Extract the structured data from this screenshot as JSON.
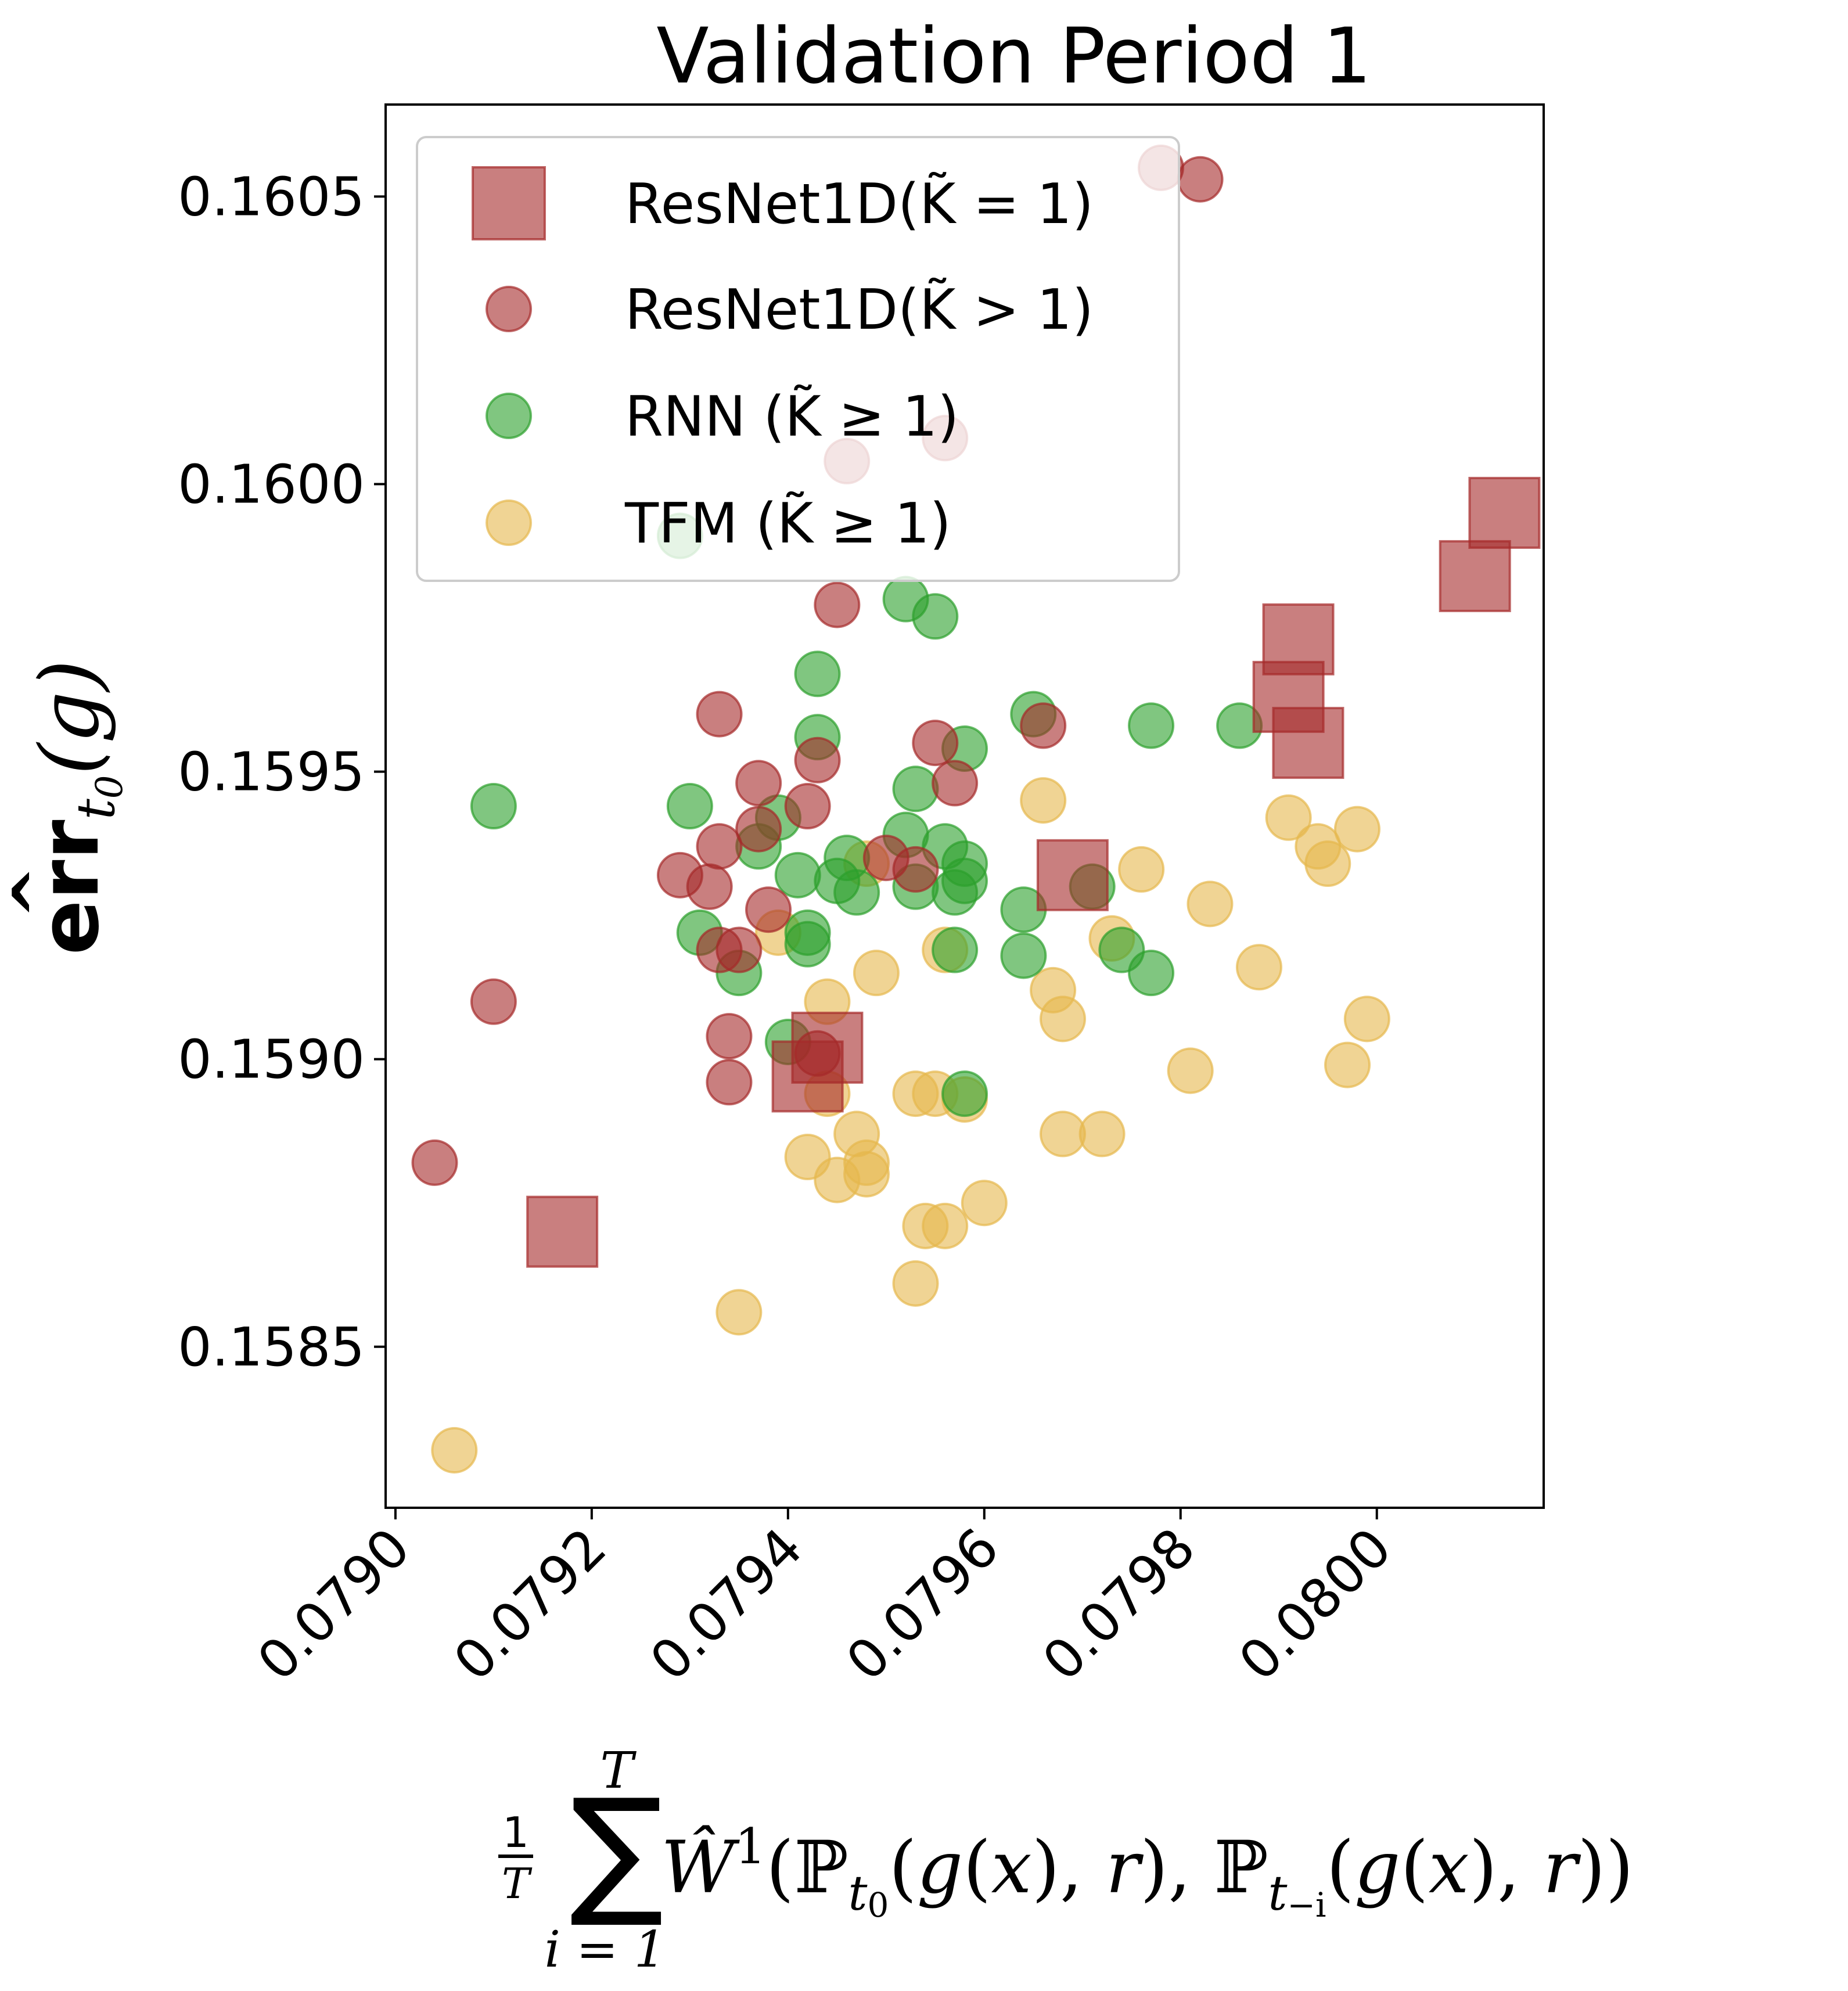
{
  "chart_data": {
    "type": "scatter",
    "title": "Validation Period 1",
    "xlabel": "1/T Σ_{i=1}^{T} Ŵ¹(ℙ_{t0}(g(x), r), ℙ_{t−i}(g(x), r))",
    "ylabel": "êrr_{t0}(g)",
    "xlim": [
      0.07899,
      0.08017
    ],
    "ylim": [
      0.15822,
      0.16066
    ],
    "xticks": [
      "0.0790",
      "0.0792",
      "0.0794",
      "0.0796",
      "0.0798",
      "0.0800"
    ],
    "xtick_values": [
      0.079,
      0.0792,
      0.0794,
      0.0796,
      0.0798,
      0.08
    ],
    "yticks": [
      "0.1585",
      "0.1590",
      "0.1595",
      "0.1600",
      "0.1605"
    ],
    "ytick_values": [
      0.1585,
      0.159,
      0.1595,
      0.16,
      0.1605
    ],
    "series": [
      {
        "name": "ResNet1D(K̃ = 1)",
        "marker": "square",
        "color": "#a52a2a",
        "points": [
          [
            0.07917,
            0.1587
          ],
          [
            0.07942,
            0.15897
          ],
          [
            0.07944,
            0.15902
          ],
          [
            0.07969,
            0.15932
          ],
          [
            0.07991,
            0.15963
          ],
          [
            0.07992,
            0.15973
          ],
          [
            0.07993,
            0.15955
          ],
          [
            0.0801,
            0.15984
          ],
          [
            0.08013,
            0.15995
          ]
        ]
      },
      {
        "name": "ResNet1D(K̃ > 1)",
        "marker": "circle",
        "color": "#a52a2a",
        "points": [
          [
            0.07904,
            0.15882
          ],
          [
            0.0791,
            0.1591
          ],
          [
            0.07929,
            0.15932
          ],
          [
            0.07932,
            0.1593
          ],
          [
            0.07933,
            0.15919
          ],
          [
            0.07933,
            0.15937
          ],
          [
            0.07933,
            0.1596
          ],
          [
            0.07934,
            0.15904
          ],
          [
            0.07934,
            0.15896
          ],
          [
            0.07935,
            0.15919
          ],
          [
            0.07937,
            0.15948
          ],
          [
            0.07937,
            0.1594
          ],
          [
            0.07938,
            0.15926
          ],
          [
            0.07942,
            0.15944
          ],
          [
            0.07943,
            0.15901
          ],
          [
            0.07943,
            0.15952
          ],
          [
            0.07945,
            0.15979
          ],
          [
            0.07946,
            0.16004
          ],
          [
            0.0795,
            0.15935
          ],
          [
            0.07953,
            0.15933
          ],
          [
            0.07955,
            0.15955
          ],
          [
            0.07956,
            0.16008
          ],
          [
            0.07957,
            0.15948
          ],
          [
            0.07966,
            0.15958
          ],
          [
            0.07978,
            0.16055
          ],
          [
            0.07982,
            0.16053
          ]
        ]
      },
      {
        "name": "RNN (K̃ ≥ 1)",
        "marker": "circle",
        "color": "#2ca02c",
        "points": [
          [
            0.0791,
            0.15944
          ],
          [
            0.07929,
            0.15991
          ],
          [
            0.0793,
            0.15944
          ],
          [
            0.07931,
            0.15922
          ],
          [
            0.07935,
            0.15915
          ],
          [
            0.07937,
            0.15937
          ],
          [
            0.07939,
            0.15942
          ],
          [
            0.0794,
            0.15903
          ],
          [
            0.07941,
            0.15932
          ],
          [
            0.07942,
            0.1592
          ],
          [
            0.07942,
            0.15922
          ],
          [
            0.07943,
            0.15956
          ],
          [
            0.07943,
            0.15967
          ],
          [
            0.07945,
            0.15931
          ],
          [
            0.07946,
            0.15935
          ],
          [
            0.07947,
            0.15929
          ],
          [
            0.07952,
            0.15939
          ],
          [
            0.07952,
            0.1598
          ],
          [
            0.07953,
            0.15947
          ],
          [
            0.07953,
            0.1593
          ],
          [
            0.07955,
            0.15977
          ],
          [
            0.07956,
            0.15937
          ],
          [
            0.07957,
            0.15929
          ],
          [
            0.07957,
            0.15919
          ],
          [
            0.07958,
            0.15954
          ],
          [
            0.07958,
            0.15931
          ],
          [
            0.07958,
            0.15934
          ],
          [
            0.07958,
            0.15894
          ],
          [
            0.07964,
            0.15926
          ],
          [
            0.07964,
            0.15918
          ],
          [
            0.07965,
            0.1596
          ],
          [
            0.07971,
            0.1593
          ],
          [
            0.07974,
            0.15919
          ],
          [
            0.07977,
            0.15915
          ],
          [
            0.07977,
            0.15958
          ],
          [
            0.07986,
            0.15958
          ]
        ]
      },
      {
        "name": "TFM (K̃ ≥ 1)",
        "marker": "circle",
        "color": "#e6b84d",
        "points": [
          [
            0.07906,
            0.15832
          ],
          [
            0.07935,
            0.15856
          ],
          [
            0.07939,
            0.15922
          ],
          [
            0.07942,
            0.15883
          ],
          [
            0.07944,
            0.1591
          ],
          [
            0.07944,
            0.15894
          ],
          [
            0.07945,
            0.15879
          ],
          [
            0.07947,
            0.15887
          ],
          [
            0.07948,
            0.1588
          ],
          [
            0.07948,
            0.15882
          ],
          [
            0.07948,
            0.15934
          ],
          [
            0.07949,
            0.15915
          ],
          [
            0.07953,
            0.15861
          ],
          [
            0.07953,
            0.15894
          ],
          [
            0.07954,
            0.15871
          ],
          [
            0.07955,
            0.15894
          ],
          [
            0.07956,
            0.15919
          ],
          [
            0.07956,
            0.15871
          ],
          [
            0.07958,
            0.15893
          ],
          [
            0.0796,
            0.15875
          ],
          [
            0.07966,
            0.15945
          ],
          [
            0.07967,
            0.15912
          ],
          [
            0.07968,
            0.15907
          ],
          [
            0.07968,
            0.15887
          ],
          [
            0.07972,
            0.15887
          ],
          [
            0.07973,
            0.15921
          ],
          [
            0.07976,
            0.15933
          ],
          [
            0.07981,
            0.15898
          ],
          [
            0.07983,
            0.15927
          ],
          [
            0.07988,
            0.15916
          ],
          [
            0.07991,
            0.15942
          ],
          [
            0.07994,
            0.15937
          ],
          [
            0.07995,
            0.15934
          ],
          [
            0.07997,
            0.15899
          ],
          [
            0.07998,
            0.1594
          ],
          [
            0.07999,
            0.15907
          ]
        ]
      }
    ],
    "legend": {
      "position": "top-left",
      "entries": [
        {
          "label": "ResNet1D(K̃ = 1)",
          "marker": "square",
          "color": "#a52a2a"
        },
        {
          "label": "ResNet1D(K̃ > 1)",
          "marker": "circle",
          "color": "#a52a2a"
        },
        {
          "label": "RNN (K̃ ≥ 1)",
          "marker": "circle",
          "color": "#2ca02c"
        },
        {
          "label": "TFM (K̃ ≥ 1)",
          "marker": "circle",
          "color": "#e6b84d"
        }
      ]
    }
  }
}
